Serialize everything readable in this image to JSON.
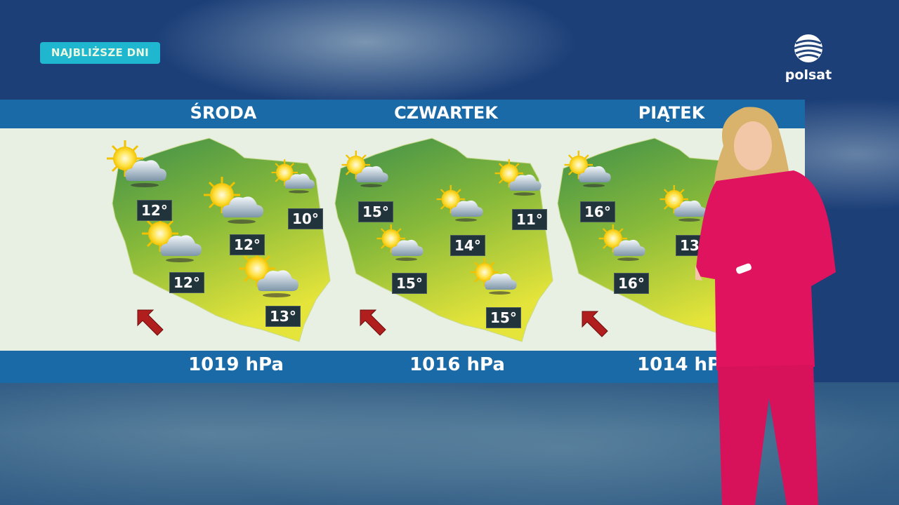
{
  "header": {
    "badge": "NAJBLIŻSZE DNI",
    "logo_text": "polsat"
  },
  "colors": {
    "band": "#1b6aa8",
    "badge": "#1fb6cf",
    "arrow": "#b01e1e",
    "temp_box": "#22343b",
    "suit": "#e0145e"
  },
  "days": [
    {
      "name": "ŚRODA",
      "pressure": "1019 hPa",
      "wind": "north-west",
      "temps": [
        "12°",
        "12°",
        "10°",
        "12°",
        "13°"
      ],
      "icons": [
        "sun-cloud",
        "sun-cloud",
        "sun-cloud",
        "sun-cloud",
        "sun-cloud"
      ]
    },
    {
      "name": "CZWARTEK",
      "pressure": "1016 hPa",
      "wind": "north-west",
      "temps": [
        "15°",
        "11°",
        "14°",
        "15°",
        "15°"
      ],
      "icons": [
        "sun-cloud",
        "sun-cloud",
        "sun-cloud",
        "sun-cloud",
        "sun-cloud"
      ]
    },
    {
      "name": "PIĄTEK",
      "pressure": "1014 hPa",
      "wind": "north-west",
      "temps": [
        "16°",
        "13°",
        "16°"
      ],
      "icons": [
        "sun-cloud",
        "sun-cloud",
        "sun-cloud"
      ]
    }
  ]
}
